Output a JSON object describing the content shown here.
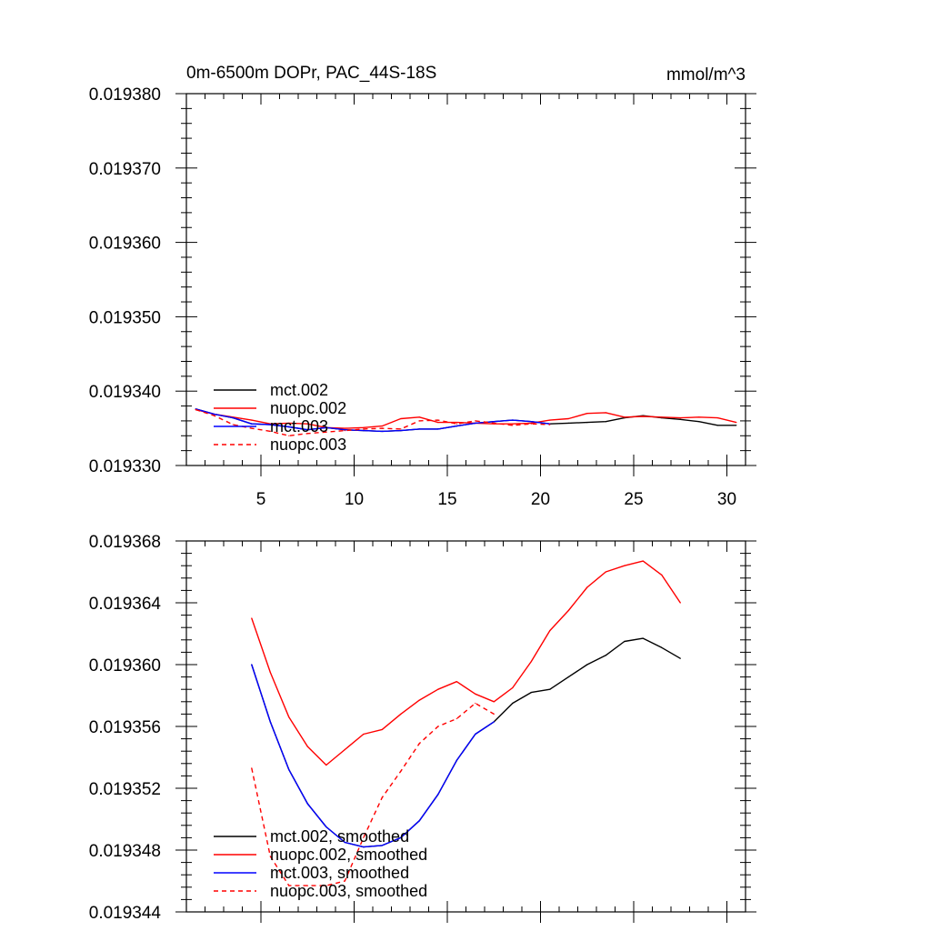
{
  "chart_data": [
    {
      "type": "line",
      "title": "0m-6500m DOPr, PAC_44S-18S",
      "units": "mmol/m^3",
      "xlim": [
        1,
        31
      ],
      "ylim": [
        0.01933,
        0.01938
      ],
      "xticks": [
        5,
        10,
        15,
        20,
        25,
        30
      ],
      "xtick_labels": [
        "5",
        "10",
        "15",
        "20",
        "25",
        "30"
      ],
      "yticks": [
        0.01933,
        0.01934,
        0.01935,
        0.01936,
        0.01937,
        0.01938
      ],
      "ytick_labels": [
        "0.019330",
        "0.019340",
        "0.019350",
        "0.019360",
        "0.019370",
        "0.019380"
      ],
      "legend_position": "bottom-left",
      "series": [
        {
          "name": "mct.002",
          "color": "#000000",
          "dash": "solid",
          "x": [
            1.5,
            2.5,
            3.5,
            4.5,
            5.5,
            6.5,
            7.5,
            8.5,
            9.5,
            10.5,
            11.5,
            12.5,
            13.5,
            14.5,
            15.5,
            16.5,
            17.5,
            18.5,
            19.5,
            20.5,
            21.5,
            22.5,
            23.5,
            24.5,
            25.5,
            26.5,
            27.5,
            28.5,
            29.5,
            30.5
          ],
          "values": [
            0.0193376,
            0.0193369,
            0.0193364,
            0.0193356,
            0.0193355,
            0.0193352,
            0.0193348,
            0.0193351,
            0.0193348,
            0.0193347,
            0.0193346,
            0.0193347,
            0.0193349,
            0.0193349,
            0.0193353,
            0.0193357,
            0.0193359,
            0.0193361,
            0.0193359,
            0.0193356,
            0.0193357,
            0.0193358,
            0.0193359,
            0.0193364,
            0.0193367,
            0.0193364,
            0.0193362,
            0.0193359,
            0.0193354,
            0.0193354
          ]
        },
        {
          "name": "nuopc.002",
          "color": "#ff0000",
          "dash": "solid",
          "x": [
            1.5,
            2.5,
            3.5,
            4.5,
            5.5,
            6.5,
            7.5,
            8.5,
            9.5,
            10.5,
            11.5,
            12.5,
            13.5,
            14.5,
            15.5,
            16.5,
            17.5,
            18.5,
            19.5,
            20.5,
            21.5,
            22.5,
            23.5,
            24.5,
            25.5,
            26.5,
            27.5,
            28.5,
            29.5,
            30.5
          ],
          "values": [
            0.0193375,
            0.0193369,
            0.0193365,
            0.0193361,
            0.0193356,
            0.0193357,
            0.0193356,
            0.0193351,
            0.019335,
            0.0193351,
            0.0193353,
            0.0193363,
            0.0193365,
            0.0193358,
            0.0193358,
            0.0193357,
            0.0193356,
            0.0193356,
            0.0193357,
            0.0193361,
            0.0193363,
            0.019337,
            0.0193371,
            0.0193365,
            0.0193366,
            0.0193365,
            0.0193364,
            0.0193365,
            0.0193364,
            0.0193358
          ]
        },
        {
          "name": "mct.003",
          "color": "#0000ff",
          "dash": "solid",
          "x": [
            1.5,
            2.5,
            3.5,
            4.5,
            5.5,
            6.5,
            7.5,
            8.5,
            9.5,
            10.5,
            11.5,
            12.5,
            13.5,
            14.5,
            15.5,
            16.5,
            17.5,
            18.5,
            19.5,
            20.5
          ],
          "values": [
            0.0193376,
            0.0193369,
            0.0193364,
            0.0193356,
            0.0193355,
            0.0193352,
            0.0193348,
            0.0193351,
            0.0193348,
            0.0193347,
            0.0193346,
            0.0193347,
            0.0193349,
            0.0193349,
            0.0193353,
            0.0193357,
            0.0193359,
            0.0193361,
            0.0193359,
            0.0193356
          ]
        },
        {
          "name": "nuopc.003",
          "color": "#ff0000",
          "dash": "dashed",
          "x": [
            1.5,
            2.5,
            3.5,
            4.5,
            5.5,
            6.5,
            7.5,
            8.5,
            9.5,
            10.5,
            11.5,
            12.5,
            13.5,
            14.5,
            15.5,
            16.5,
            17.5,
            18.5,
            19.5,
            20.5
          ],
          "values": [
            0.0193375,
            0.0193367,
            0.0193355,
            0.019335,
            0.0193346,
            0.019334,
            0.0193343,
            0.0193345,
            0.0193347,
            0.0193349,
            0.019335,
            0.0193349,
            0.019336,
            0.0193361,
            0.0193356,
            0.019336,
            0.0193357,
            0.0193354,
            0.0193356,
            0.0193355
          ]
        }
      ]
    },
    {
      "type": "line",
      "xlim": [
        1,
        31
      ],
      "ylim": [
        0.019344,
        0.019368
      ],
      "xticks": [
        5,
        10,
        15,
        20,
        25,
        30
      ],
      "yticks": [
        0.019344,
        0.019348,
        0.019352,
        0.019356,
        0.01936,
        0.019364,
        0.019368
      ],
      "ytick_labels": [
        "0.019344",
        "0.019348",
        "0.019352",
        "0.019356",
        "0.019360",
        "0.019364",
        "0.019368"
      ],
      "legend_position": "bottom-left",
      "series": [
        {
          "name": "mct.002, smoothed",
          "color": "#000000",
          "dash": "solid",
          "x": [
            4.5,
            5.5,
            6.5,
            7.5,
            8.5,
            9.5,
            10.5,
            11.5,
            12.5,
            13.5,
            14.5,
            15.5,
            16.5,
            17.5,
            18.5,
            19.5,
            20.5,
            21.5,
            22.5,
            23.5,
            24.5,
            25.5,
            26.5,
            27.5
          ],
          "values": [
            0.01936,
            0.0193563,
            0.0193532,
            0.019351,
            0.0193495,
            0.0193485,
            0.0193482,
            0.0193483,
            0.0193488,
            0.0193499,
            0.0193516,
            0.0193538,
            0.0193555,
            0.0193563,
            0.0193575,
            0.0193582,
            0.0193584,
            0.0193592,
            0.01936,
            0.0193606,
            0.0193615,
            0.0193617,
            0.0193611,
            0.0193604
          ]
        },
        {
          "name": "nuopc.002, smoothed",
          "color": "#ff0000",
          "dash": "solid",
          "x": [
            4.5,
            5.5,
            6.5,
            7.5,
            8.5,
            9.5,
            10.5,
            11.5,
            12.5,
            13.5,
            14.5,
            15.5,
            16.5,
            17.5,
            18.5,
            19.5,
            20.5,
            21.5,
            22.5,
            23.5,
            24.5,
            25.5,
            26.5,
            27.5
          ],
          "values": [
            0.019363,
            0.0193595,
            0.0193566,
            0.0193547,
            0.0193535,
            0.0193545,
            0.0193555,
            0.0193558,
            0.0193568,
            0.0193577,
            0.0193584,
            0.0193589,
            0.0193581,
            0.0193576,
            0.0193585,
            0.0193602,
            0.0193622,
            0.0193635,
            0.019365,
            0.019366,
            0.0193664,
            0.0193667,
            0.0193658,
            0.019364
          ]
        },
        {
          "name": "mct.003, smoothed",
          "color": "#0000ff",
          "dash": "solid",
          "x": [
            4.5,
            5.5,
            6.5,
            7.5,
            8.5,
            9.5,
            10.5,
            11.5,
            12.5,
            13.5,
            14.5,
            15.5,
            16.5,
            17.5
          ],
          "values": [
            0.01936,
            0.0193563,
            0.0193532,
            0.019351,
            0.0193495,
            0.0193485,
            0.0193482,
            0.0193483,
            0.0193488,
            0.0193499,
            0.0193516,
            0.0193538,
            0.0193555,
            0.0193563
          ]
        },
        {
          "name": "nuopc.003, smoothed",
          "color": "#ff0000",
          "dash": "dashed",
          "x": [
            4.5,
            5.5,
            6.5,
            7.5,
            8.5,
            9.5,
            10.5,
            11.5,
            12.5,
            13.5,
            14.5,
            15.5,
            16.5,
            17.5
          ],
          "values": [
            0.0193533,
            0.0193476,
            0.0193457,
            0.0193457,
            0.0193457,
            0.019346,
            0.0193488,
            0.0193514,
            0.0193531,
            0.0193549,
            0.019356,
            0.0193565,
            0.0193575,
            0.0193568
          ]
        }
      ]
    }
  ]
}
